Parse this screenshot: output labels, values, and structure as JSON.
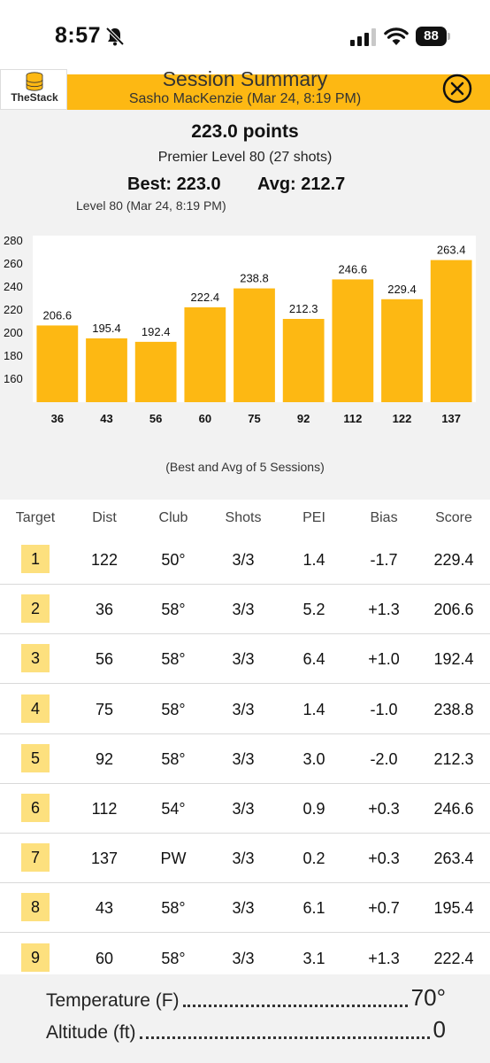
{
  "status_bar": {
    "time": "8:57",
    "battery": "88"
  },
  "header": {
    "logo_text": "TheStack",
    "title": "Session Summary",
    "subtitle": "Sasho MacKenzie (Mar 24, 8:19 PM)"
  },
  "summary": {
    "points": "223.0 points",
    "level_line": "Premier Level 80 (27 shots)",
    "best": "Best: 223.0",
    "avg": "Avg: 212.7",
    "level_date": "Level 80 (Mar 24, 8:19 PM)",
    "chart_caption": "(Best and Avg of 5 Sessions)"
  },
  "chart_data": {
    "type": "bar",
    "categories": [
      "36",
      "43",
      "56",
      "60",
      "75",
      "92",
      "112",
      "122",
      "137"
    ],
    "values": [
      206.6,
      195.4,
      192.4,
      222.4,
      238.8,
      212.3,
      246.6,
      229.4,
      263.4
    ],
    "data_labels": [
      "206.6",
      "195.4",
      "192.4",
      "222.4",
      "238.8",
      "212.3",
      "246.6",
      "229.4",
      "263.4"
    ],
    "y_ticks": [
      "280",
      "260",
      "240",
      "220",
      "200",
      "180",
      "160"
    ],
    "ylim": [
      140,
      280
    ],
    "bar_color": "#fdb813"
  },
  "table": {
    "headers": [
      "Target",
      "Dist",
      "Club",
      "Shots",
      "PEI",
      "Bias",
      "Score"
    ],
    "rows": [
      [
        "1",
        "122",
        "50°",
        "3/3",
        "1.4",
        "-1.7",
        "229.4"
      ],
      [
        "2",
        "36",
        "58°",
        "3/3",
        "5.2",
        "+1.3",
        "206.6"
      ],
      [
        "3",
        "56",
        "58°",
        "3/3",
        "6.4",
        "+1.0",
        "192.4"
      ],
      [
        "4",
        "75",
        "58°",
        "3/3",
        "1.4",
        "-1.0",
        "238.8"
      ],
      [
        "5",
        "92",
        "58°",
        "3/3",
        "3.0",
        "-2.0",
        "212.3"
      ],
      [
        "6",
        "112",
        "54°",
        "3/3",
        "0.9",
        "+0.3",
        "246.6"
      ],
      [
        "7",
        "137",
        "PW",
        "3/3",
        "0.2",
        "+0.3",
        "263.4"
      ],
      [
        "8",
        "43",
        "58°",
        "3/3",
        "6.1",
        "+0.7",
        "195.4"
      ],
      [
        "9",
        "60",
        "58°",
        "3/3",
        "3.1",
        "+1.3",
        "222.4"
      ]
    ]
  },
  "conditions": {
    "temperature_label": "Temperature (F)",
    "temperature_value": "70°",
    "altitude_label": "Altitude (ft)",
    "altitude_value": "0"
  },
  "colors": {
    "accent": "#fdb813",
    "badge": "#fde07e",
    "panel": "#f2f2f2"
  }
}
